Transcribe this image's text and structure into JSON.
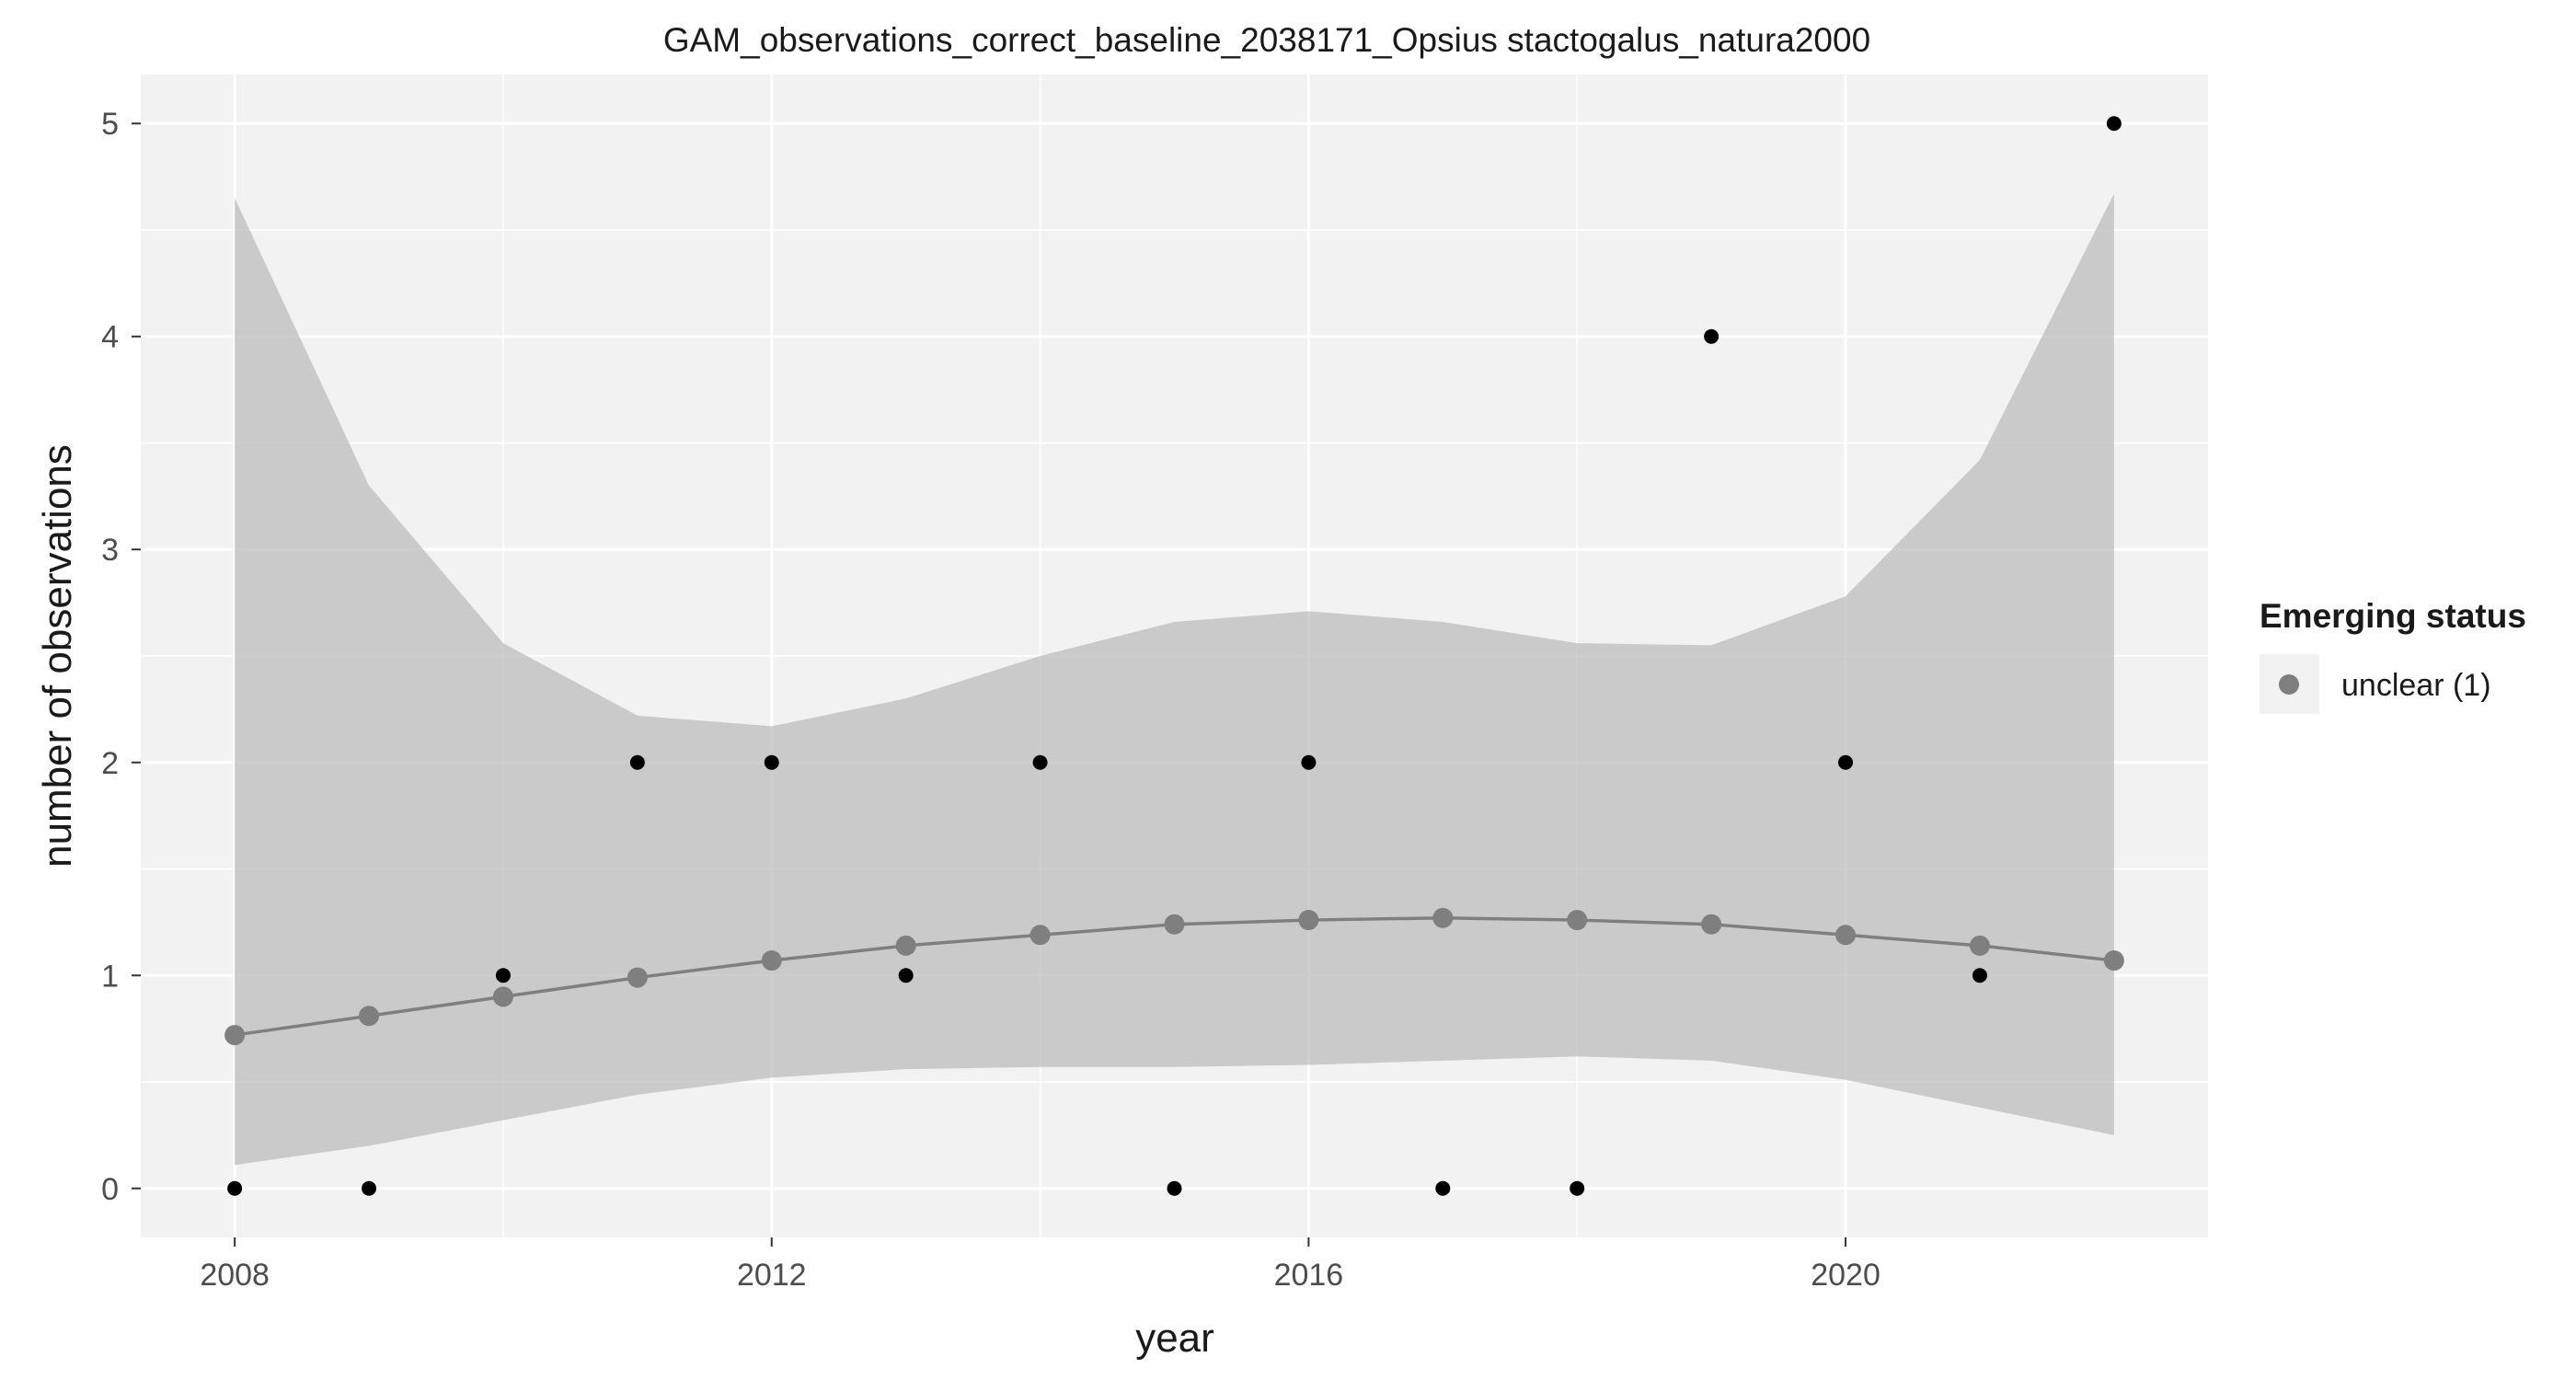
{
  "chart_data": {
    "type": "scatter",
    "title": "GAM_observations_correct_baseline_2038171_Opsius stactogalus_natura2000",
    "xlabel": "year",
    "ylabel": "number of observations",
    "xlim": [
      2007.3,
      2022.7
    ],
    "ylim": [
      -0.23,
      5.23
    ],
    "x_ticks": [
      2008,
      2012,
      2016,
      2020
    ],
    "x_minor_ticks": [
      2010,
      2014,
      2018
    ],
    "y_ticks": [
      0,
      1,
      2,
      3,
      4,
      5
    ],
    "y_minor_ticks": [
      0.5,
      1.5,
      2.5,
      3.5,
      4.5
    ],
    "grid": true,
    "series": [
      {
        "role": "observed",
        "color": "#000000",
        "points": [
          {
            "x": 2008,
            "y": 0
          },
          {
            "x": 2009,
            "y": 0
          },
          {
            "x": 2010,
            "y": 1
          },
          {
            "x": 2011,
            "y": 2
          },
          {
            "x": 2012,
            "y": 2
          },
          {
            "x": 2013,
            "y": 1
          },
          {
            "x": 2014,
            "y": 2
          },
          {
            "x": 2015,
            "y": 0
          },
          {
            "x": 2016,
            "y": 2
          },
          {
            "x": 2017,
            "y": 0
          },
          {
            "x": 2018,
            "y": 0
          },
          {
            "x": 2019,
            "y": 4
          },
          {
            "x": 2020,
            "y": 2
          },
          {
            "x": 2021,
            "y": 1
          },
          {
            "x": 2022,
            "y": 5
          }
        ]
      },
      {
        "role": "fitted",
        "name": "unclear (1)",
        "color": "#7f7f7f",
        "x": [
          2008,
          2009,
          2010,
          2011,
          2012,
          2013,
          2014,
          2015,
          2016,
          2017,
          2018,
          2019,
          2020,
          2021,
          2022
        ],
        "y": [
          0.72,
          0.81,
          0.9,
          0.99,
          1.07,
          1.14,
          1.19,
          1.24,
          1.26,
          1.27,
          1.26,
          1.24,
          1.19,
          1.14,
          1.07
        ],
        "lower": [
          0.11,
          0.2,
          0.32,
          0.44,
          0.52,
          0.56,
          0.57,
          0.57,
          0.58,
          0.6,
          0.62,
          0.6,
          0.51,
          0.38,
          0.25
        ],
        "upper": [
          4.65,
          3.3,
          2.56,
          2.22,
          2.17,
          2.3,
          2.5,
          2.66,
          2.71,
          2.66,
          2.56,
          2.55,
          2.78,
          3.42,
          4.67
        ]
      }
    ],
    "legend": {
      "title": "Emerging status",
      "position": "right",
      "entries": [
        {
          "label": "unclear (1)",
          "color": "#7f7f7f"
        }
      ]
    }
  }
}
